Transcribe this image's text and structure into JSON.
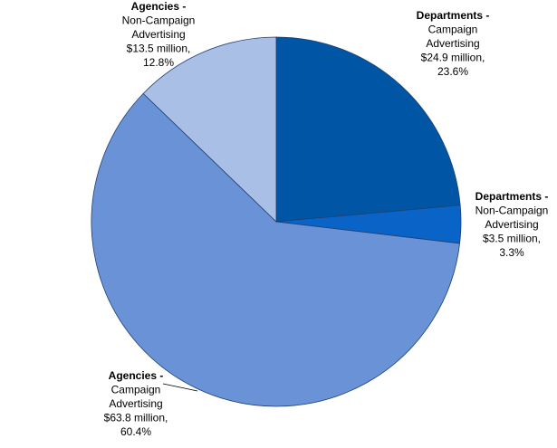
{
  "chart_data": {
    "type": "pie",
    "categories": [
      "Departments -",
      "Departments -",
      "Agencies -",
      "Agencies -"
    ],
    "category_details": [
      [
        "Campaign",
        "Advertising",
        "$24.9 million,"
      ],
      [
        "Non-Campaign",
        "Advertising",
        "$3.5 million,"
      ],
      [
        "Campaign",
        "Advertising",
        "$63.8 million,"
      ],
      [
        "Non-Campaign",
        "Advertising",
        "$13.5 million,"
      ]
    ],
    "values": [
      23.6,
      3.3,
      60.4,
      12.8
    ],
    "value_labels": [
      "23.6%",
      "3.3%",
      "60.4%",
      "12.8%"
    ],
    "colors": [
      "#0055a4",
      "#0a64c8",
      "#6a92d6",
      "#aabfe6"
    ]
  }
}
